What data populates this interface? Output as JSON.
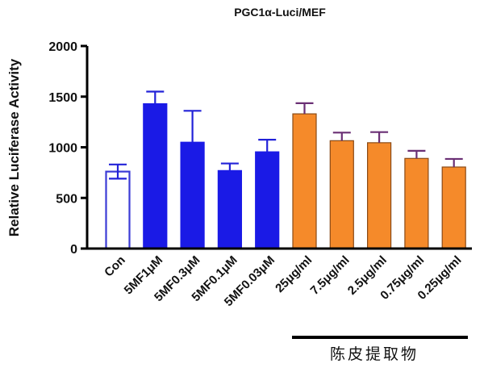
{
  "chart_data": {
    "type": "bar",
    "title": "PGC1α-Luci/MEF",
    "ylabel": "Relative Luciferase Activity",
    "xlabel": "",
    "ylim": [
      0,
      2000
    ],
    "yticks": [
      0,
      500,
      1000,
      1500,
      2000
    ],
    "categories": [
      "Con",
      "5MF1μM",
      "5MF0.3μM",
      "5MF0.1μM",
      "5MF0.03μM",
      "25μg/ml",
      "7.5μg/ml",
      "2.5μg/ml",
      "0.75μg/ml",
      "0.25μg/ml"
    ],
    "values": [
      760,
      1430,
      1050,
      770,
      955,
      1330,
      1065,
      1045,
      890,
      805
    ],
    "errors": [
      70,
      120,
      310,
      70,
      120,
      105,
      80,
      105,
      75,
      80
    ],
    "colors": {
      "con_edge": "#3b3bd6",
      "con_fill": "#ffffff",
      "compound": "#1a1ae6",
      "extract": "#f58a2a",
      "extract_edge": "#8a4a16",
      "error_blue": "#2222d8",
      "error_extract": "#6a2f74"
    },
    "group_label": "陈皮提取物"
  }
}
